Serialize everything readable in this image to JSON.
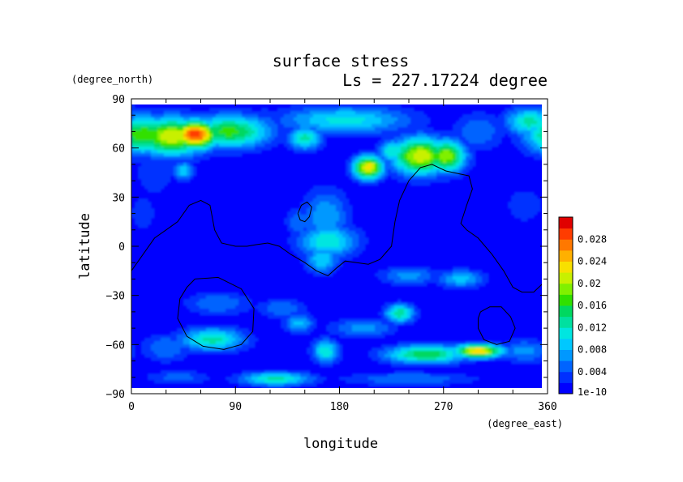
{
  "chart_data": {
    "type": "heatmap",
    "title": "surface stress",
    "subtitle": "Ls = 227.17224 degree",
    "xlabel": "longitude",
    "ylabel": "latitude",
    "x_units": "(degree_east)",
    "y_units": "(degree_north)",
    "xlim": [
      0,
      360
    ],
    "ylim": [
      -90,
      90
    ],
    "x_ticks": [
      "0",
      "90",
      "180",
      "270",
      "360"
    ],
    "y_ticks": [
      "90",
      "60",
      "30",
      "0",
      "−30",
      "−60",
      "−90"
    ],
    "grid": false,
    "colorbar": {
      "labels": [
        "1e-10",
        "0.004",
        "0.008",
        "0.012",
        "0.016",
        "0.02",
        "0.024",
        "0.028"
      ],
      "levels": [
        0,
        0.002,
        0.004,
        0.006,
        0.008,
        0.01,
        0.012,
        0.014,
        0.016,
        0.018,
        0.02,
        0.022,
        0.024,
        0.026,
        0.028,
        0.03
      ],
      "colors": [
        "#0000ff",
        "#0030ff",
        "#0064ff",
        "#0098ff",
        "#00c8ff",
        "#00e6e0",
        "#00e0a0",
        "#00d860",
        "#30e000",
        "#80f000",
        "#c8f000",
        "#f8e000",
        "#ffb000",
        "#ff7800",
        "#ff3c00",
        "#e00000"
      ],
      "placement": "right"
    },
    "background_value": 0.001,
    "features": [
      {
        "lon": 10,
        "lat": 68,
        "lon_width": 20,
        "lat_width": 8,
        "value": 0.018
      },
      {
        "lon": 35,
        "lat": 67,
        "lon_width": 22,
        "lat_width": 8,
        "value": 0.022
      },
      {
        "lon": 55,
        "lat": 68,
        "lon_width": 14,
        "lat_width": 6,
        "value": 0.03
      },
      {
        "lon": 85,
        "lat": 70,
        "lon_width": 25,
        "lat_width": 7,
        "value": 0.017
      },
      {
        "lon": 115,
        "lat": 72,
        "lon_width": 12,
        "lat_width": 8,
        "value": 0.006
      },
      {
        "lon": 150,
        "lat": 66,
        "lon_width": 10,
        "lat_width": 5,
        "value": 0.013
      },
      {
        "lon": 185,
        "lat": 77,
        "lon_width": 40,
        "lat_width": 6,
        "value": 0.011
      },
      {
        "lon": 205,
        "lat": 48,
        "lon_width": 9,
        "lat_width": 5,
        "value": 0.024
      },
      {
        "lon": 225,
        "lat": 58,
        "lon_width": 8,
        "lat_width": 5,
        "value": 0.012
      },
      {
        "lon": 250,
        "lat": 55,
        "lon_width": 17,
        "lat_width": 8,
        "value": 0.022
      },
      {
        "lon": 272,
        "lat": 55,
        "lon_width": 12,
        "lat_width": 7,
        "value": 0.02
      },
      {
        "lon": 300,
        "lat": 70,
        "lon_width": 15,
        "lat_width": 8,
        "value": 0.006
      },
      {
        "lon": 345,
        "lat": 76,
        "lon_width": 15,
        "lat_width": 6,
        "value": 0.013
      },
      {
        "lon": 20,
        "lat": 45,
        "lon_width": 12,
        "lat_width": 10,
        "value": 0.004
      },
      {
        "lon": 45,
        "lat": 46,
        "lon_width": 6,
        "lat_width": 4,
        "value": 0.01
      },
      {
        "lon": 168,
        "lat": 18,
        "lon_width": 14,
        "lat_width": 12,
        "value": 0.008
      },
      {
        "lon": 170,
        "lat": 3,
        "lon_width": 18,
        "lat_width": 7,
        "value": 0.012
      },
      {
        "lon": 165,
        "lat": -8,
        "lon_width": 10,
        "lat_width": 6,
        "value": 0.01
      },
      {
        "lon": 145,
        "lat": 15,
        "lon_width": 8,
        "lat_width": 6,
        "value": 0.006
      },
      {
        "lon": 240,
        "lat": -18,
        "lon_width": 18,
        "lat_width": 4,
        "value": 0.007
      },
      {
        "lon": 285,
        "lat": -20,
        "lon_width": 14,
        "lat_width": 4,
        "value": 0.009
      },
      {
        "lon": 75,
        "lat": -35,
        "lon_width": 20,
        "lat_width": 5,
        "value": 0.006
      },
      {
        "lon": 130,
        "lat": -38,
        "lon_width": 15,
        "lat_width": 4,
        "value": 0.006
      },
      {
        "lon": 232,
        "lat": -41,
        "lon_width": 9,
        "lat_width": 4,
        "value": 0.014
      },
      {
        "lon": 145,
        "lat": -47,
        "lon_width": 9,
        "lat_width": 4,
        "value": 0.009
      },
      {
        "lon": 200,
        "lat": -50,
        "lon_width": 20,
        "lat_width": 4,
        "value": 0.007
      },
      {
        "lon": 70,
        "lat": -57,
        "lon_width": 20,
        "lat_width": 5,
        "value": 0.013
      },
      {
        "lon": 30,
        "lat": -62,
        "lon_width": 15,
        "lat_width": 6,
        "value": 0.006
      },
      {
        "lon": 168,
        "lat": -64,
        "lon_width": 8,
        "lat_width": 5,
        "value": 0.012
      },
      {
        "lon": 255,
        "lat": -66,
        "lon_width": 25,
        "lat_width": 4,
        "value": 0.016
      },
      {
        "lon": 300,
        "lat": -64,
        "lon_width": 15,
        "lat_width": 3,
        "value": 0.024
      },
      {
        "lon": 340,
        "lat": -64,
        "lon_width": 15,
        "lat_width": 5,
        "value": 0.007
      },
      {
        "lon": 125,
        "lat": -81,
        "lon_width": 22,
        "lat_width": 3,
        "value": 0.013
      },
      {
        "lon": 240,
        "lat": -81,
        "lon_width": 40,
        "lat_width": 3,
        "value": 0.006
      },
      {
        "lon": 40,
        "lat": -80,
        "lon_width": 20,
        "lat_width": 3,
        "value": 0.005
      },
      {
        "lon": 10,
        "lat": 20,
        "lon_width": 10,
        "lat_width": 10,
        "value": 0.003
      },
      {
        "lon": 340,
        "lat": 25,
        "lon_width": 15,
        "lat_width": 10,
        "value": 0.003
      }
    ],
    "contours": [
      {
        "name": "continent-outline",
        "points": [
          [
            0,
            -15
          ],
          [
            10,
            -5
          ],
          [
            20,
            5
          ],
          [
            30,
            10
          ],
          [
            40,
            15
          ],
          [
            50,
            25
          ],
          [
            60,
            28
          ],
          [
            68,
            25
          ],
          [
            72,
            10
          ],
          [
            78,
            2
          ],
          [
            90,
            0
          ],
          [
            100,
            0
          ],
          [
            108,
            1
          ],
          [
            118,
            2
          ],
          [
            128,
            0
          ],
          [
            138,
            -5
          ],
          [
            150,
            -10
          ],
          [
            160,
            -15
          ],
          [
            170,
            -18
          ],
          [
            178,
            -13
          ],
          [
            185,
            -9
          ],
          [
            195,
            -10
          ],
          [
            205,
            -11
          ],
          [
            215,
            -8
          ],
          [
            225,
            0
          ],
          [
            228,
            15
          ],
          [
            232,
            28
          ],
          [
            240,
            40
          ],
          [
            250,
            48
          ],
          [
            260,
            50
          ],
          [
            272,
            46
          ],
          [
            285,
            44
          ],
          [
            292,
            43
          ],
          [
            295,
            35
          ],
          [
            290,
            25
          ],
          [
            285,
            14
          ],
          [
            290,
            10
          ],
          [
            300,
            5
          ],
          [
            312,
            -5
          ],
          [
            322,
            -15
          ],
          [
            330,
            -25
          ],
          [
            338,
            -28
          ],
          [
            348,
            -28
          ],
          [
            360,
            -20
          ]
        ]
      },
      {
        "name": "small-island-outline",
        "points": [
          [
            144,
            20
          ],
          [
            147,
            25
          ],
          [
            152,
            27
          ],
          [
            156,
            24
          ],
          [
            154,
            18
          ],
          [
            150,
            15
          ],
          [
            146,
            16
          ],
          [
            144,
            20
          ]
        ]
      },
      {
        "name": "southwest-ring-outline",
        "points": [
          [
            55,
            -20
          ],
          [
            75,
            -19
          ],
          [
            95,
            -26
          ],
          [
            106,
            -38
          ],
          [
            105,
            -52
          ],
          [
            95,
            -60
          ],
          [
            80,
            -63
          ],
          [
            62,
            -61
          ],
          [
            48,
            -55
          ],
          [
            40,
            -44
          ],
          [
            42,
            -32
          ],
          [
            48,
            -25
          ],
          [
            55,
            -20
          ]
        ]
      },
      {
        "name": "southeast-ring-outline",
        "points": [
          [
            302,
            -40
          ],
          [
            310,
            -37
          ],
          [
            320,
            -37
          ],
          [
            328,
            -43
          ],
          [
            332,
            -50
          ],
          [
            327,
            -58
          ],
          [
            316,
            -60
          ],
          [
            305,
            -57
          ],
          [
            300,
            -50
          ],
          [
            300,
            -44
          ],
          [
            302,
            -40
          ]
        ]
      }
    ]
  }
}
